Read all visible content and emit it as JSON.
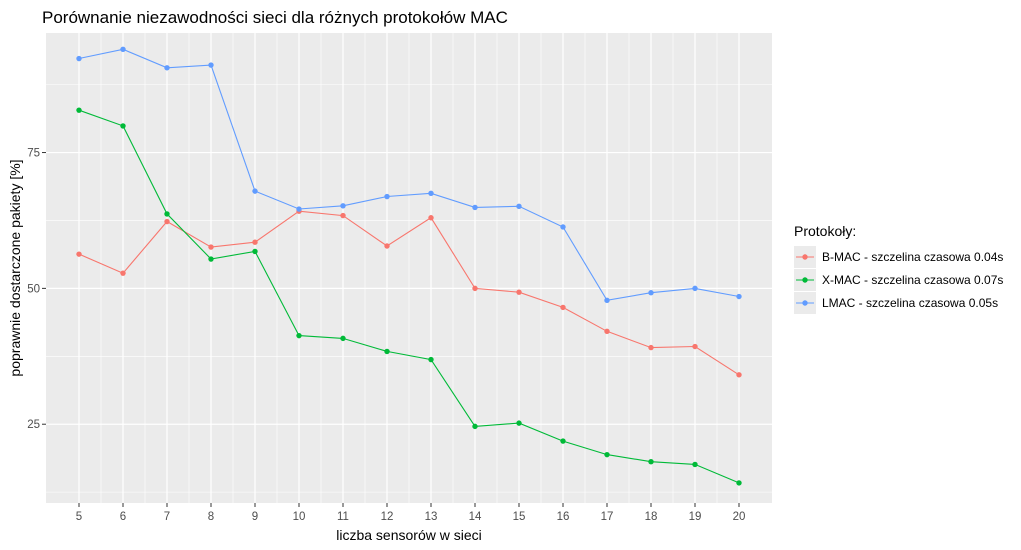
{
  "chart_data": {
    "type": "line",
    "title": "Porównanie niezawodności sieci dla różnych protokołów MAC",
    "xlabel": "liczba sensorów w sieci",
    "ylabel": "poprawnie dostarczone pakiety [%]",
    "x": [
      5,
      6,
      7,
      8,
      9,
      10,
      11,
      12,
      13,
      14,
      15,
      16,
      17,
      18,
      19,
      20
    ],
    "xlim": [
      4.25,
      20.75
    ],
    "ylim": [
      10.5,
      97
    ],
    "yticks": [
      25,
      50,
      75
    ],
    "grid": true,
    "legend": {
      "title": "Protokoły:",
      "position": "right"
    },
    "series": [
      {
        "name": "B-MAC - szczelina czasowa 0.04s",
        "color": "#F8766D",
        "values": [
          56.3,
          52.8,
          62.3,
          57.6,
          58.5,
          64.2,
          63.4,
          57.8,
          63.0,
          50.0,
          49.3,
          46.5,
          42.1,
          39.1,
          39.3,
          34.1
        ]
      },
      {
        "name": "X-MAC - szczelina czasowa 0.07s",
        "color": "#00BA38",
        "values": [
          82.8,
          79.9,
          63.7,
          55.4,
          56.8,
          41.3,
          40.8,
          38.4,
          36.9,
          24.6,
          25.2,
          21.9,
          19.4,
          18.1,
          17.6,
          14.2
        ]
      },
      {
        "name": "LMAC - szczelina czasowa 0.05s",
        "color": "#619CFF",
        "values": [
          92.3,
          94.0,
          90.6,
          91.1,
          67.9,
          64.6,
          65.2,
          66.9,
          67.5,
          64.9,
          65.1,
          61.3,
          47.8,
          49.2,
          50.0,
          48.5
        ]
      }
    ]
  }
}
